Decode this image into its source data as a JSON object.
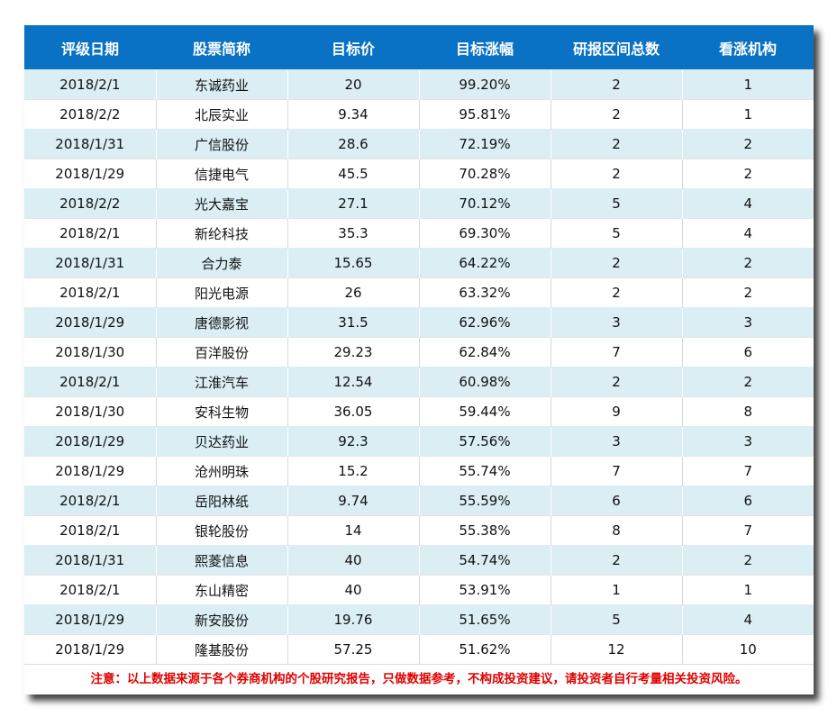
{
  "table": {
    "header": [
      "评级日期",
      "股票简称",
      "目标价",
      "目标涨幅",
      "研报区间总数",
      "看涨机构"
    ],
    "rows": [
      [
        "2018/2/1",
        "东诚药业",
        "20",
        "99.20%",
        "2",
        "1"
      ],
      [
        "2018/2/2",
        "北辰实业",
        "9.34",
        "95.81%",
        "2",
        "1"
      ],
      [
        "2018/1/31",
        "广信股份",
        "28.6",
        "72.19%",
        "2",
        "2"
      ],
      [
        "2018/1/29",
        "信捷电气",
        "45.5",
        "70.28%",
        "2",
        "2"
      ],
      [
        "2018/2/2",
        "光大嘉宝",
        "27.1",
        "70.12%",
        "5",
        "4"
      ],
      [
        "2018/2/1",
        "新纶科技",
        "35.3",
        "69.30%",
        "5",
        "4"
      ],
      [
        "2018/1/31",
        "合力泰",
        "15.65",
        "64.22%",
        "2",
        "2"
      ],
      [
        "2018/2/1",
        "阳光电源",
        "26",
        "63.32%",
        "2",
        "2"
      ],
      [
        "2018/1/29",
        "唐德影视",
        "31.5",
        "62.96%",
        "3",
        "3"
      ],
      [
        "2018/1/30",
        "百洋股份",
        "29.23",
        "62.84%",
        "7",
        "6"
      ],
      [
        "2018/2/1",
        "江淮汽车",
        "12.54",
        "60.98%",
        "2",
        "2"
      ],
      [
        "2018/1/30",
        "安科生物",
        "36.05",
        "59.44%",
        "9",
        "8"
      ],
      [
        "2018/1/29",
        "贝达药业",
        "92.3",
        "57.56%",
        "3",
        "3"
      ],
      [
        "2018/1/29",
        "沧州明珠",
        "15.2",
        "55.74%",
        "7",
        "7"
      ],
      [
        "2018/2/1",
        "岳阳林纸",
        "9.74",
        "55.59%",
        "6",
        "6"
      ],
      [
        "2018/2/1",
        "银轮股份",
        "14",
        "55.38%",
        "8",
        "7"
      ],
      [
        "2018/1/31",
        "熙菱信息",
        "40",
        "54.74%",
        "2",
        "2"
      ],
      [
        "2018/2/1",
        "东山精密",
        "40",
        "53.91%",
        "1",
        "1"
      ],
      [
        "2018/1/29",
        "新安股份",
        "19.76",
        "51.65%",
        "5",
        "4"
      ],
      [
        "2018/1/29",
        "隆基股份",
        "57.25",
        "51.62%",
        "12",
        "10"
      ]
    ],
    "note": "注意：以上数据来源于各个券商机构的个股研究报告，只做数据参考，不构成投资建议，请投资者自行考量相关投资风险。"
  }
}
